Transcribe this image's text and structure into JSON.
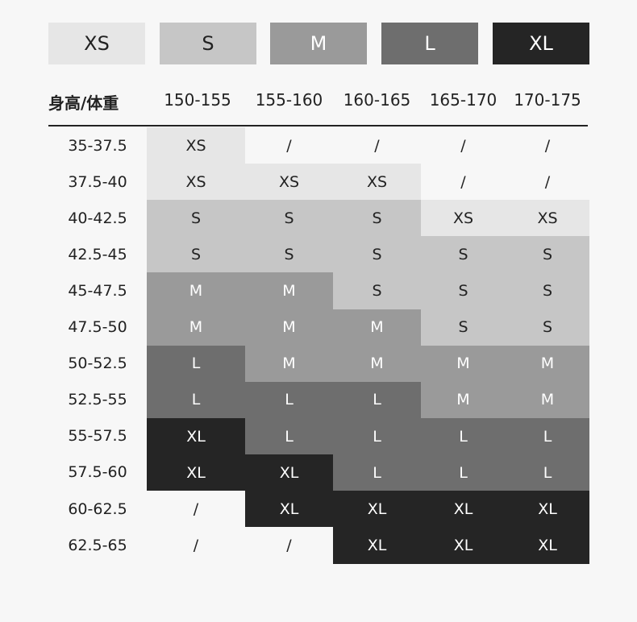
{
  "legend": [
    "XS",
    "S",
    "M",
    "L",
    "XL"
  ],
  "colors": {
    "XS": "#e6e6e6",
    "S": "#c6c6c6",
    "M": "#9a9a9a",
    "L": "#6e6e6e",
    "XL": "#252525",
    "none": "#f7f7f7"
  },
  "header": {
    "corner": "身高/体重",
    "columns": [
      "150-155",
      "155-160",
      "160-165",
      "165-170",
      "170-175"
    ]
  },
  "rows": [
    {
      "label": "35-37.5",
      "cells": [
        "XS",
        "/",
        "/",
        "/",
        "/"
      ]
    },
    {
      "label": "37.5-40",
      "cells": [
        "XS",
        "XS",
        "XS",
        "/",
        "/"
      ]
    },
    {
      "label": "40-42.5",
      "cells": [
        "S",
        "S",
        "S",
        "XS",
        "XS"
      ]
    },
    {
      "label": "42.5-45",
      "cells": [
        "S",
        "S",
        "S",
        "S",
        "S"
      ]
    },
    {
      "label": "45-47.5",
      "cells": [
        "M",
        "M",
        "S",
        "S",
        "S"
      ]
    },
    {
      "label": "47.5-50",
      "cells": [
        "M",
        "M",
        "M",
        "S",
        "S"
      ]
    },
    {
      "label": "50-52.5",
      "cells": [
        "L",
        "M",
        "M",
        "M",
        "M"
      ]
    },
    {
      "label": "52.5-55",
      "cells": [
        "L",
        "L",
        "L",
        "M",
        "M"
      ]
    },
    {
      "label": "55-57.5",
      "cells": [
        "XL",
        "L",
        "L",
        "L",
        "L"
      ]
    },
    {
      "label": "57.5-60",
      "cells": [
        "XL",
        "XL",
        "L",
        "L",
        "L"
      ]
    },
    {
      "label": "60-62.5",
      "cells": [
        "/",
        "XL",
        "XL",
        "XL",
        "XL"
      ]
    },
    {
      "label": "62.5-65",
      "cells": [
        "/",
        "/",
        "XL",
        "XL",
        "XL"
      ]
    }
  ]
}
